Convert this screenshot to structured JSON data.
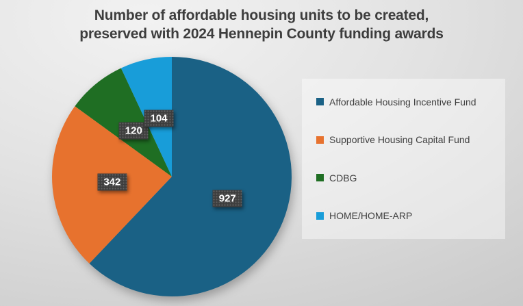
{
  "chart_data": {
    "type": "pie",
    "title": "Number of affordable housing units to be created, preserved with 2024 Hennepin County funding awards",
    "title_lines": [
      "Number of affordable housing units to be created,",
      "preserved with 2024 Hennepin County funding awards"
    ],
    "categories": [
      "Affordable Housing Incentive Fund",
      "Supportive Housing Capital Fund",
      "CDBG",
      "HOME/HOME-ARP"
    ],
    "values": [
      927,
      342,
      120,
      104
    ],
    "colors": [
      "#1a6185",
      "#e7722e",
      "#1f6e23",
      "#189dd9"
    ],
    "start_angle_deg": 0,
    "direction": "clockwise",
    "legend_position": "right",
    "data_labels_shown": true,
    "data_label_style": {
      "box_color": "#3d3d3d",
      "text_color": "#ffffff"
    },
    "title_color": "#3d3d3d",
    "legend_text_color": "#404040"
  }
}
